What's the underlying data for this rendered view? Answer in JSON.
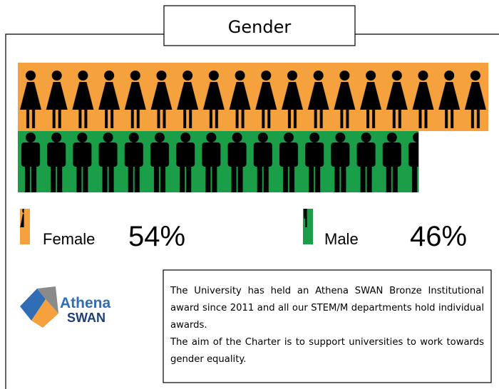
{
  "chart_data": {
    "type": "pictogram",
    "title": "Gender",
    "categories": [
      "Female",
      "Male"
    ],
    "values": [
      54,
      46
    ],
    "value_labels": [
      "54%",
      "46%"
    ],
    "colors": [
      "#f5a23e",
      "#1a9e48"
    ]
  },
  "note": {
    "paragraphs": [
      "The University has held an Athena SWAN Bronze Institutional award since 2011 and all our STEM/M departments hold individual awards.",
      "The aim of the Charter is to support universities to work towards gender equality."
    ]
  },
  "logo": {
    "line1": "Athena",
    "line2": "SWAN"
  }
}
